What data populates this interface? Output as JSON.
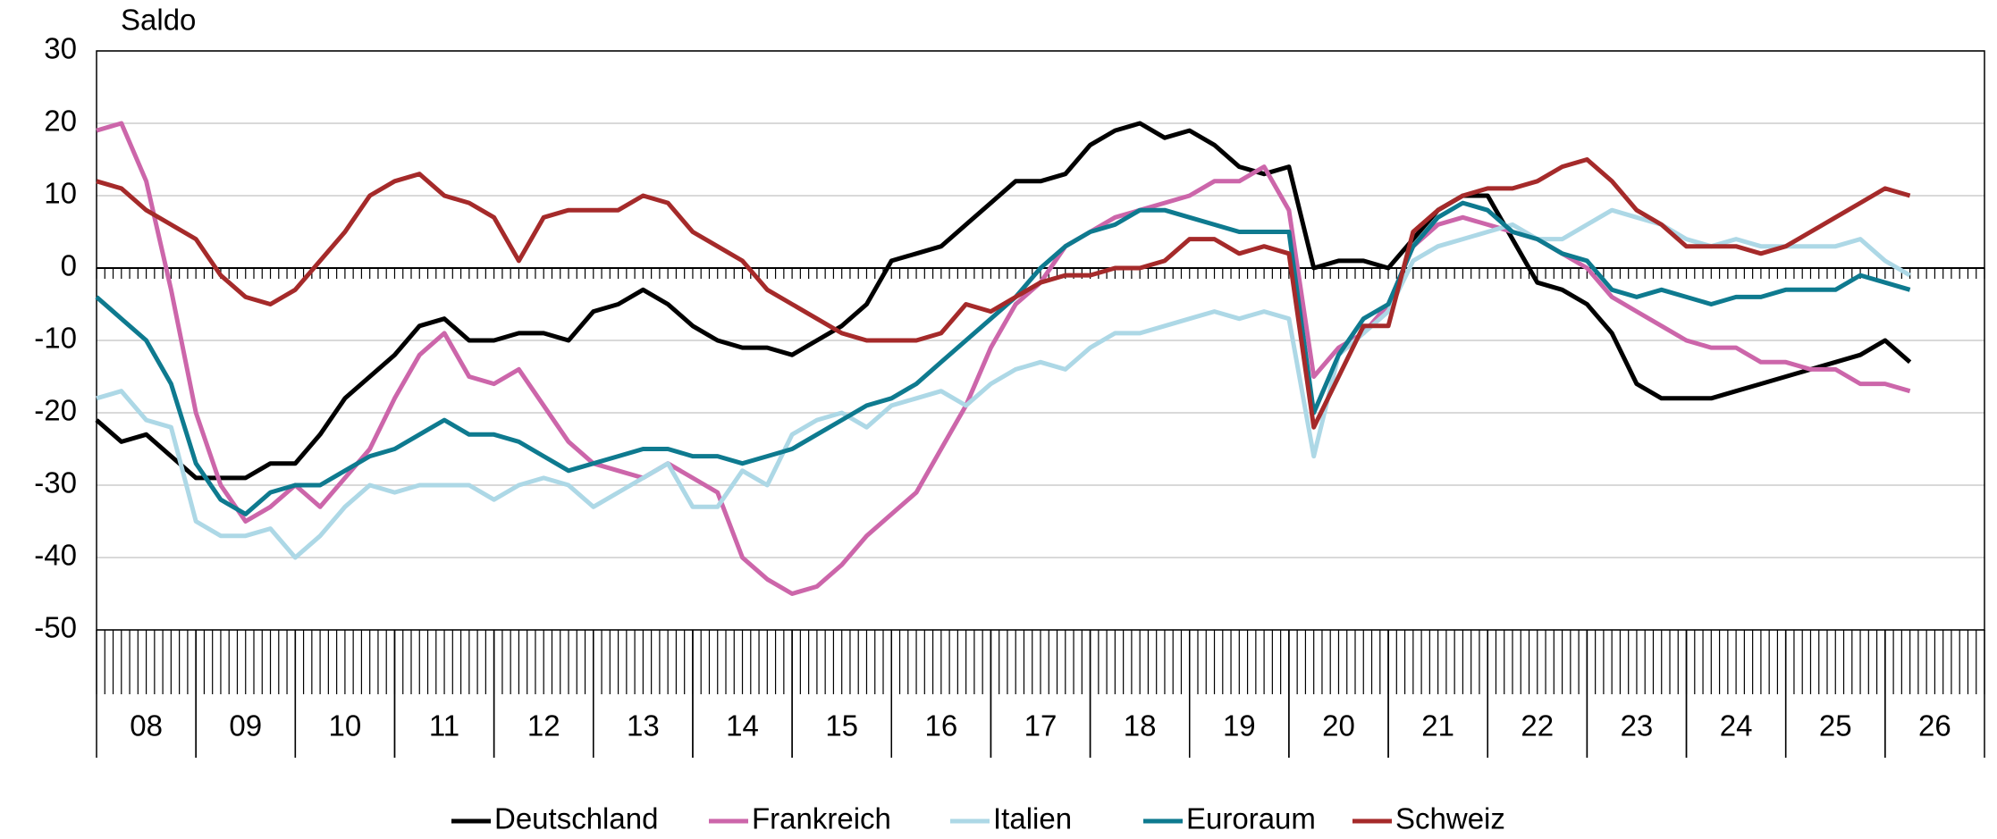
{
  "chart_data": {
    "type": "line",
    "ylabel": "Saldo",
    "xlim": [
      8,
      27
    ],
    "ylim": [
      -50,
      30
    ],
    "yticks": [
      -50,
      -40,
      -30,
      -20,
      -10,
      0,
      10,
      20,
      30
    ],
    "xticks": [
      {
        "value": 8.5,
        "label": "08"
      },
      {
        "value": 9.5,
        "label": "09"
      },
      {
        "value": 10.5,
        "label": "10"
      },
      {
        "value": 11.5,
        "label": "11"
      },
      {
        "value": 12.5,
        "label": "12"
      },
      {
        "value": 13.5,
        "label": "13"
      },
      {
        "value": 14.5,
        "label": "14"
      },
      {
        "value": 15.5,
        "label": "15"
      },
      {
        "value": 16.5,
        "label": "16"
      },
      {
        "value": 17.5,
        "label": "17"
      },
      {
        "value": 18.5,
        "label": "18"
      },
      {
        "value": 19.5,
        "label": "19"
      },
      {
        "value": 20.5,
        "label": "20"
      },
      {
        "value": 21.5,
        "label": "21"
      },
      {
        "value": 22.5,
        "label": "22"
      },
      {
        "value": 23.5,
        "label": "23"
      },
      {
        "value": 24.5,
        "label": "24"
      },
      {
        "value": 25.5,
        "label": "25"
      },
      {
        "value": 26.5,
        "label": "26"
      }
    ],
    "grid": true,
    "x": [
      8,
      8.25,
      8.5,
      8.75,
      9,
      9.25,
      9.5,
      9.75,
      10,
      10.25,
      10.5,
      10.75,
      11,
      11.25,
      11.5,
      11.75,
      12,
      12.25,
      12.5,
      12.75,
      13,
      13.25,
      13.5,
      13.75,
      14,
      14.25,
      14.5,
      14.75,
      15,
      15.25,
      15.5,
      15.75,
      16,
      16.25,
      16.5,
      16.75,
      17,
      17.25,
      17.5,
      17.75,
      18,
      18.25,
      18.5,
      18.75,
      19,
      19.25,
      19.5,
      19.75,
      20,
      20.25,
      20.5,
      20.75,
      21,
      21.25,
      21.5,
      21.75,
      22,
      22.25,
      22.5,
      22.75,
      23,
      23.25,
      23.5,
      23.75,
      24,
      24.25,
      24.5,
      24.75,
      25,
      25.25,
      25.5,
      25.75,
      26,
      26.25
    ],
    "series": [
      {
        "name": "Deutschland",
        "color": "#000000",
        "values": [
          -21,
          -24,
          -23,
          -26,
          -29,
          -29,
          -29,
          -27,
          -27,
          -23,
          -18,
          -15,
          -12,
          -8,
          -7,
          -10,
          -10,
          -9,
          -9,
          -10,
          -6,
          -5,
          -3,
          -5,
          -8,
          -10,
          -11,
          -11,
          -12,
          -10,
          -8,
          -5,
          1,
          2,
          3,
          6,
          9,
          12,
          12,
          13,
          17,
          19,
          20,
          18,
          19,
          17,
          14,
          13,
          14,
          0,
          1,
          1,
          0,
          4,
          8,
          10,
          10,
          4,
          -2,
          -3,
          -5,
          -9,
          -16,
          -18,
          -18,
          -18,
          -17,
          -16,
          -15,
          -14,
          -13,
          -12,
          -10,
          -13
        ]
      },
      {
        "name": "Frankreich",
        "color": "#cc66aa",
        "values": [
          19,
          20,
          12,
          -3,
          -20,
          -30,
          -35,
          -33,
          -30,
          -33,
          -29,
          -25,
          -18,
          -12,
          -9,
          -15,
          -16,
          -14,
          -19,
          -24,
          -27,
          -28,
          -29,
          -27,
          -29,
          -31,
          -40,
          -43,
          -45,
          -44,
          -41,
          -37,
          -34,
          -31,
          -25,
          -19,
          -11,
          -5,
          -2,
          3,
          5,
          7,
          8,
          9,
          10,
          12,
          12,
          14,
          8,
          -15,
          -11,
          -9,
          -5,
          3,
          6,
          7,
          6,
          5,
          4,
          2,
          0,
          -4,
          -6,
          -8,
          -10,
          -11,
          -11,
          -13,
          -13,
          -14,
          -14,
          -16,
          -16,
          -17
        ]
      },
      {
        "name": "Italien",
        "color": "#add8e6",
        "values": [
          -18,
          -17,
          -21,
          -22,
          -35,
          -37,
          -37,
          -36,
          -40,
          -37,
          -33,
          -30,
          -31,
          -30,
          -30,
          -30,
          -32,
          -30,
          -29,
          -30,
          -33,
          -31,
          -29,
          -27,
          -33,
          -33,
          -28,
          -30,
          -23,
          -21,
          -20,
          -22,
          -19,
          -18,
          -17,
          -19,
          -16,
          -14,
          -13,
          -14,
          -11,
          -9,
          -9,
          -8,
          -7,
          -6,
          -7,
          -6,
          -7,
          -26,
          -12,
          -9,
          -6,
          1,
          3,
          4,
          5,
          6,
          4,
          4,
          6,
          8,
          7,
          6,
          4,
          3,
          4,
          3,
          3,
          3,
          3,
          4,
          1,
          -1
        ]
      },
      {
        "name": "Euroraum",
        "color": "#0e7a8f",
        "values": [
          -4,
          -7,
          -10,
          -16,
          -27,
          -32,
          -34,
          -31,
          -30,
          -30,
          -28,
          -26,
          -25,
          -23,
          -21,
          -23,
          -23,
          -24,
          -26,
          -28,
          -27,
          -26,
          -25,
          -25,
          -26,
          -26,
          -27,
          -26,
          -25,
          -23,
          -21,
          -19,
          -18,
          -16,
          -13,
          -10,
          -7,
          -4,
          0,
          3,
          5,
          6,
          8,
          8,
          7,
          6,
          5,
          5,
          5,
          -20,
          -12,
          -7,
          -5,
          3,
          7,
          9,
          8,
          5,
          4,
          2,
          1,
          -3,
          -4,
          -3,
          -4,
          -5,
          -4,
          -4,
          -3,
          -3,
          -3,
          -1,
          -2,
          -3
        ]
      },
      {
        "name": "Schweiz",
        "color": "#a52a2a",
        "values": [
          12,
          11,
          8,
          6,
          4,
          -1,
          -4,
          -5,
          -3,
          1,
          5,
          10,
          12,
          13,
          10,
          9,
          7,
          1,
          7,
          8,
          8,
          8,
          10,
          9,
          5,
          3,
          1,
          -3,
          -5,
          -7,
          -9,
          -10,
          -10,
          -10,
          -9,
          -5,
          -6,
          -4,
          -2,
          -1,
          -1,
          0,
          0,
          1,
          4,
          4,
          2,
          3,
          2,
          -22,
          -15,
          -8,
          -8,
          5,
          8,
          10,
          11,
          11,
          12,
          14,
          15,
          12,
          8,
          6,
          3,
          3,
          3,
          2,
          3,
          5,
          7,
          9,
          11,
          10
        ]
      }
    ]
  }
}
